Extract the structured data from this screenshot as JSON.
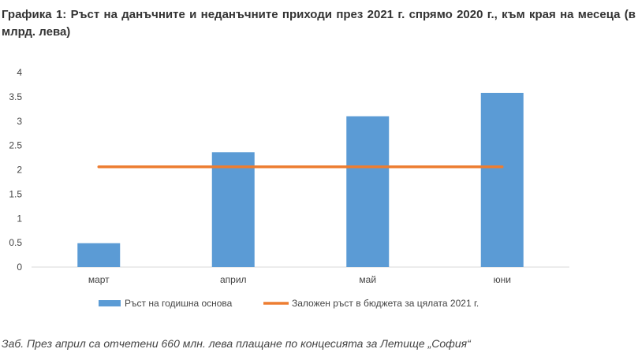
{
  "title": "Графика 1: Ръст на данъчните и неданъчните приходи през 2021 г. спрямо 2020 г., към края на месеца (в млрд. лева)",
  "note": "Заб. През април са отчетени 660 млн. лева плащане по концесията за Летище „София“",
  "chart_data": {
    "type": "bar",
    "categories": [
      "март",
      "април",
      "май",
      "юни"
    ],
    "ylim": [
      0,
      4
    ],
    "yticks": [
      "0",
      "0.5",
      "1",
      "1.5",
      "2",
      "2.5",
      "3",
      "3.5",
      "4"
    ],
    "series": [
      {
        "name": "Ръст на годишна основа",
        "type": "bar",
        "values": [
          0.49,
          2.36,
          3.1,
          3.58
        ],
        "color": "#5b9bd5"
      },
      {
        "name": "Заложен ръст в бюджета за цялата 2021 г.",
        "type": "line",
        "values": [
          2.06,
          2.06,
          2.06,
          2.06
        ],
        "color": "#ed7d31"
      }
    ],
    "grid": false,
    "legend": "bottom"
  }
}
